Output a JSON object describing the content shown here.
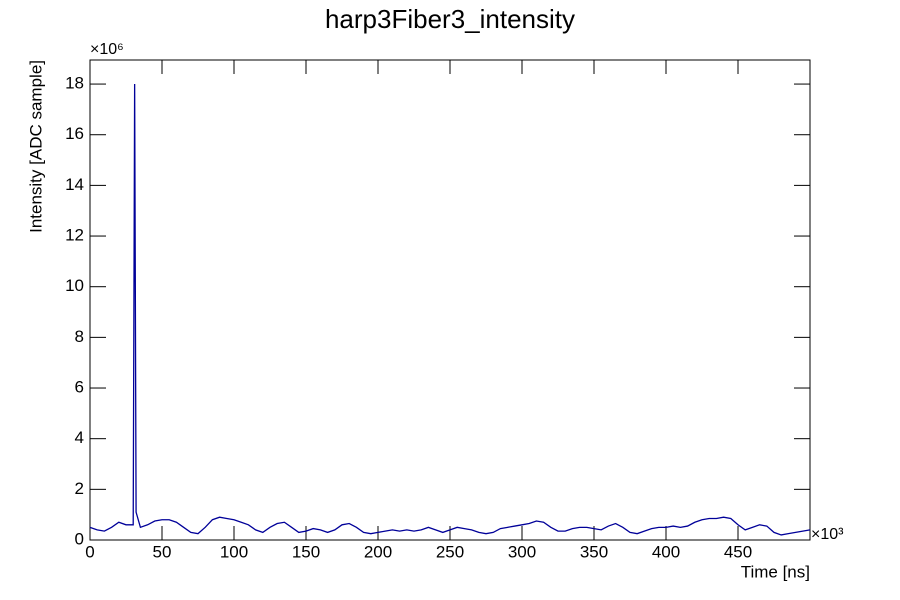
{
  "chart_data": {
    "type": "line",
    "title": "harp3Fiber3_intensity",
    "x_label": "Time [ns]",
    "y_label": "Intensity [ADC sample]",
    "x_multiplier": "×10³",
    "y_multiplier": "×10⁶",
    "xlim": [
      0,
      500
    ],
    "ylim": [
      0,
      18.95
    ],
    "xticks": [
      0,
      50,
      100,
      150,
      200,
      250,
      300,
      350,
      400,
      450
    ],
    "yticks": [
      0,
      2,
      4,
      6,
      8,
      10,
      12,
      14,
      16,
      18
    ],
    "grid": false,
    "series": [
      {
        "color": "#000099",
        "x": [
          0,
          5,
          10,
          15,
          20,
          25,
          30,
          31,
          32,
          35,
          40,
          45,
          50,
          55,
          60,
          65,
          70,
          75,
          80,
          85,
          90,
          95,
          100,
          105,
          110,
          115,
          120,
          125,
          130,
          135,
          140,
          145,
          150,
          155,
          160,
          165,
          170,
          175,
          180,
          185,
          190,
          195,
          200,
          205,
          210,
          215,
          220,
          225,
          230,
          235,
          240,
          245,
          250,
          255,
          260,
          265,
          270,
          275,
          280,
          285,
          290,
          295,
          300,
          305,
          310,
          315,
          320,
          325,
          330,
          335,
          340,
          345,
          350,
          355,
          360,
          365,
          370,
          375,
          380,
          385,
          390,
          395,
          400,
          405,
          410,
          415,
          420,
          425,
          430,
          435,
          440,
          445,
          450,
          455,
          460,
          465,
          470,
          475,
          480,
          485,
          490,
          495,
          500
        ],
        "values": [
          0.5,
          0.4,
          0.35,
          0.5,
          0.7,
          0.6,
          0.6,
          18,
          1.1,
          0.5,
          0.6,
          0.75,
          0.8,
          0.8,
          0.7,
          0.5,
          0.3,
          0.25,
          0.5,
          0.8,
          0.9,
          0.85,
          0.8,
          0.7,
          0.6,
          0.4,
          0.3,
          0.5,
          0.65,
          0.7,
          0.5,
          0.3,
          0.35,
          0.45,
          0.4,
          0.3,
          0.4,
          0.6,
          0.65,
          0.5,
          0.3,
          0.25,
          0.3,
          0.35,
          0.4,
          0.35,
          0.4,
          0.35,
          0.4,
          0.5,
          0.4,
          0.3,
          0.4,
          0.5,
          0.45,
          0.4,
          0.3,
          0.25,
          0.3,
          0.45,
          0.5,
          0.55,
          0.6,
          0.65,
          0.75,
          0.7,
          0.5,
          0.35,
          0.35,
          0.45,
          0.5,
          0.5,
          0.45,
          0.4,
          0.55,
          0.65,
          0.5,
          0.3,
          0.25,
          0.35,
          0.45,
          0.5,
          0.5,
          0.55,
          0.5,
          0.55,
          0.7,
          0.8,
          0.85,
          0.85,
          0.9,
          0.85,
          0.6,
          0.4,
          0.5,
          0.6,
          0.55,
          0.3,
          0.2,
          0.25,
          0.3,
          0.35,
          0.4
        ]
      }
    ]
  }
}
